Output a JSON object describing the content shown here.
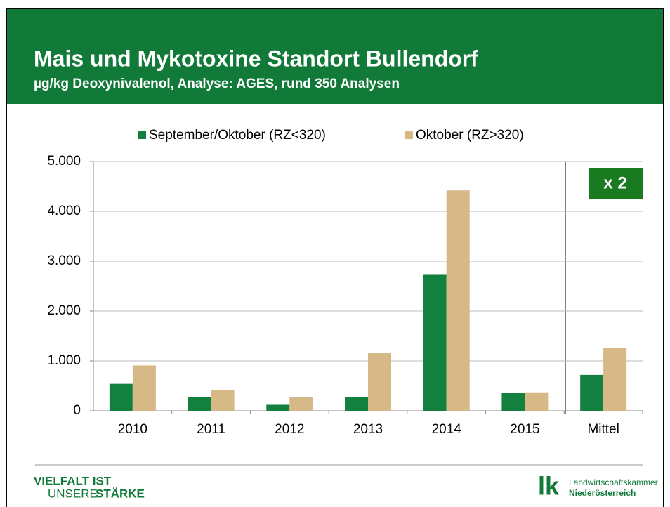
{
  "chart_data": {
    "type": "bar",
    "title": "Mais und Mykotoxine Standort Bullendorf",
    "subtitle": "µg/kg Deoxynivalenol, Analyse: AGES, rund 350 Analysen",
    "categories": [
      "2010",
      "2011",
      "2012",
      "2013",
      "2014",
      "2015",
      "Mittel"
    ],
    "series": [
      {
        "name": "September/Oktober (RZ<320)",
        "color": "#13803f",
        "values": [
          540,
          280,
          120,
          280,
          2740,
          360,
          720
        ]
      },
      {
        "name": "Oktober (RZ>320)",
        "color": "#d7b887",
        "values": [
          910,
          410,
          280,
          1160,
          4420,
          370,
          1260
        ]
      }
    ],
    "ylim": [
      0,
      5000
    ],
    "yticks": [
      {
        "value": 0,
        "label": "0"
      },
      {
        "value": 1000,
        "label": "1.000"
      },
      {
        "value": 2000,
        "label": "2.000"
      },
      {
        "value": 3000,
        "label": "3.000"
      },
      {
        "value": 4000,
        "label": "4.000"
      },
      {
        "value": 5000,
        "label": "5.000"
      }
    ],
    "grid": true,
    "annotation": "x 2"
  },
  "footer": {
    "left": [
      "VIELFALT IST",
      "UNSERE",
      "STÄRKE"
    ],
    "logo": "lk",
    "right": [
      "Landwirtschaftskammer",
      "Niederösterreich"
    ]
  }
}
